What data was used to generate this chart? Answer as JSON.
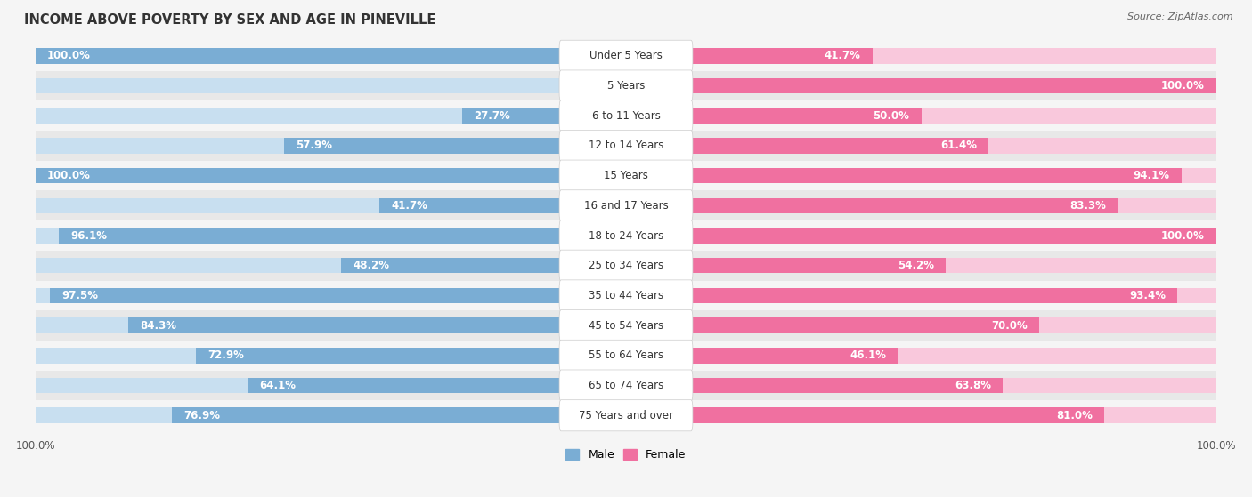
{
  "title": "INCOME ABOVE POVERTY BY SEX AND AGE IN PINEVILLE",
  "source": "Source: ZipAtlas.com",
  "categories": [
    "Under 5 Years",
    "5 Years",
    "6 to 11 Years",
    "12 to 14 Years",
    "15 Years",
    "16 and 17 Years",
    "18 to 24 Years",
    "25 to 34 Years",
    "35 to 44 Years",
    "45 to 54 Years",
    "55 to 64 Years",
    "65 to 74 Years",
    "75 Years and over"
  ],
  "male": [
    100.0,
    0.0,
    27.7,
    57.9,
    100.0,
    41.7,
    96.1,
    48.2,
    97.5,
    84.3,
    72.9,
    64.1,
    76.9
  ],
  "female": [
    41.7,
    100.0,
    50.0,
    61.4,
    94.1,
    83.3,
    100.0,
    54.2,
    93.4,
    70.0,
    46.1,
    63.8,
    81.0
  ],
  "male_color": "#7aadd4",
  "female_color": "#f070a0",
  "male_color_light": "#c8dff0",
  "female_color_light": "#f9c8dc",
  "row_bg_even": "#e8e8e8",
  "row_bg_odd": "#f5f5f5",
  "label_bg": "#ffffff",
  "max_val": 100.0,
  "title_fontsize": 10.5,
  "label_fontsize": 8.5,
  "cat_fontsize": 8.5,
  "tick_fontsize": 8.5,
  "source_fontsize": 8
}
